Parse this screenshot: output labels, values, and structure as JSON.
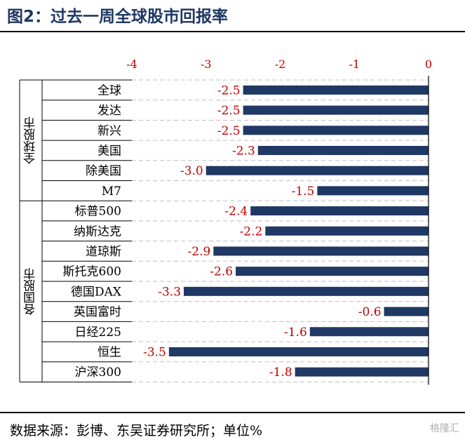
{
  "title": "图2：过去一周全球股市回报率",
  "source": "数据来源：彭博、东吴证券研究所；单位%",
  "logo": "格隆汇",
  "chart_data": {
    "type": "bar",
    "orientation": "horizontal",
    "xlim": [
      -4,
      0
    ],
    "xticks": [
      -4,
      -3,
      -2,
      -1,
      0
    ],
    "bar_color": "#1f3864",
    "tick_color": "#c00000",
    "label_color": "#c00000",
    "groups": [
      {
        "label": "全球股市",
        "start": 0,
        "end": 5
      },
      {
        "label": "各国股市",
        "start": 6,
        "end": 14
      }
    ],
    "categories": [
      "全球",
      "发达",
      "新兴",
      "美国",
      "除美国",
      "M7",
      "标普500",
      "纳斯达克",
      "道琼斯",
      "斯托克600",
      "德国DAX",
      "英国富时",
      "日经225",
      "恒生",
      "沪深300"
    ],
    "values": [
      -2.5,
      -2.5,
      -2.5,
      -2.3,
      -3.0,
      -1.5,
      -2.4,
      -2.2,
      -2.9,
      -2.6,
      -3.3,
      -0.6,
      -1.6,
      -3.5,
      -1.8
    ],
    "value_labels": [
      "-2.5",
      "-2.5",
      "-2.5",
      "-2.3",
      "-3.0",
      "-1.5",
      "-2.4",
      "-2.2",
      "-2.9",
      "-2.6",
      "-3.3",
      "-0.6",
      "-1.6",
      "-3.5",
      "-1.8"
    ]
  }
}
